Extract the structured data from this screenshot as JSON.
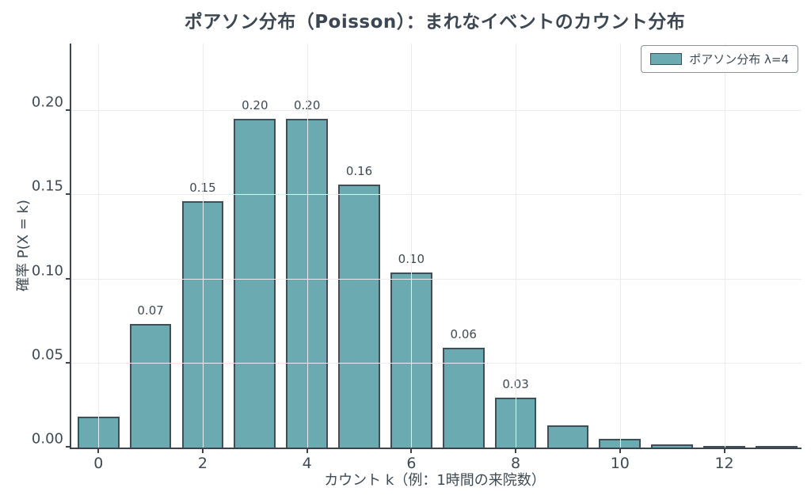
{
  "title": "ポアソン分布（Poisson）：まれなイベントのカウント分布",
  "legend": {
    "label": "ポアソン分布 λ=4",
    "position": "upper right",
    "swatch_color": "#6aaab0"
  },
  "axes": {
    "x_label": "カウント k（例：1時間の来院数）",
    "y_label": "確率 P(X = k)",
    "x_tick_values": [
      0,
      2,
      4,
      6,
      8,
      10,
      12
    ],
    "y_tick_labels": [
      "0.00",
      "0.05",
      "0.10",
      "0.15",
      "0.20"
    ],
    "y_tick_values": [
      0.0,
      0.05,
      0.1,
      0.15,
      0.2
    ]
  },
  "chart_data": {
    "type": "bar",
    "title": "ポアソン分布（Poisson）：まれなイベントのカウント分布",
    "xlabel": "カウント k（例：1時間の来院数）",
    "ylabel": "確率 P(X = k)",
    "categories": [
      0,
      1,
      2,
      3,
      4,
      5,
      6,
      7,
      8,
      9,
      10,
      11,
      12,
      13
    ],
    "values": [
      0.0183,
      0.0733,
      0.1465,
      0.1954,
      0.1954,
      0.1563,
      0.1042,
      0.0595,
      0.0298,
      0.0132,
      0.0053,
      0.0019,
      0.0006,
      0.0002
    ],
    "bar_labels": [
      "",
      "0.07",
      "0.15",
      "0.20",
      "0.20",
      "0.16",
      "0.10",
      "0.06",
      "0.03",
      "",
      "",
      "",
      "",
      ""
    ],
    "series_name": "ポアソン分布 λ=4",
    "xlim": [
      -0.52,
      13.48
    ],
    "ylim": [
      0,
      0.24
    ],
    "bar_width": 0.8,
    "grid": true,
    "grid_over_bars": true,
    "legend_position": "upper right",
    "colors": {
      "bar_fill": "#6aaab0",
      "bar_edge": "#3f4e58",
      "grid": "#ececef",
      "text": "#3e4a53",
      "spine": "#3c454e",
      "background": "#ffffff"
    }
  }
}
